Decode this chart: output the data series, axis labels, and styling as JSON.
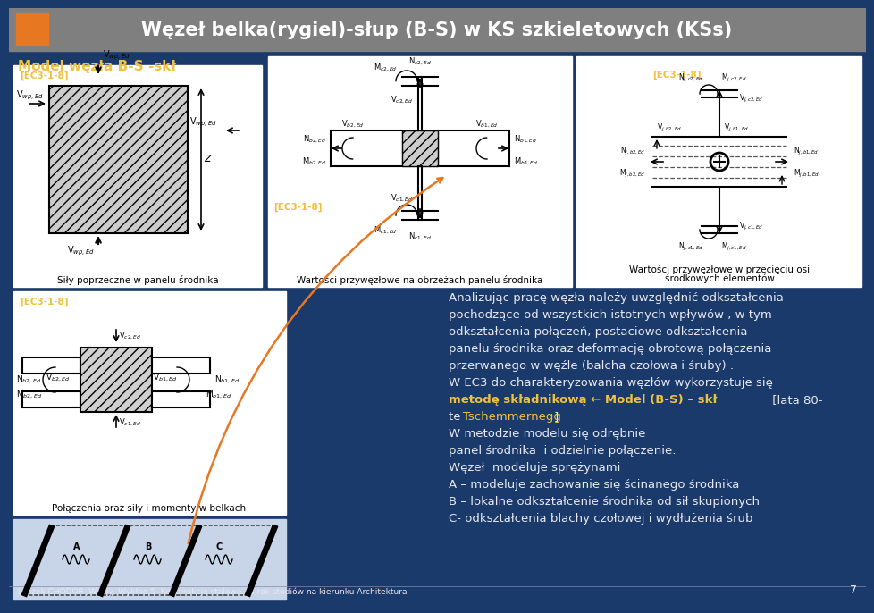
{
  "title": "Węzeł belka(rygiel)-słup (B-S) w KS szkieletowych (KSs)",
  "title_color": "#ffffff",
  "title_bg_color": "#7f7f7f",
  "bg_color": "#1a3a6b",
  "orange_rect_color": "#e87722",
  "subtitle": "Model węzła B-S -skł",
  "subtitle_color": "#f0c040",
  "ec3_label": "[EC3-1-8]",
  "ec3_color": "#f0c040",
  "bottom_text": "Leszek CHODOR ,Węzły, Wykład 5  Konstrukcje stalowe , 3 rok studiów na kierunku Architektura",
  "page_num": "7",
  "text_block1_line1": "Analizując pracę węzła należy uwzględnić odkształcenia",
  "text_block1_line2": "pochodzące od wszystkich istotnych wpływów , w tym",
  "text_block1_line3": "odkształcenia połączeń, postaciowe odkształcenia",
  "text_block1_line4": "panelu środnika oraz deformację obrotową połączenia",
  "text_block1_line5": "przerwanego w węźle (balcha czołowa i śruby) .",
  "text_block2_line1": "W EC3 do charakteryzowania węzłów wykorzystuje się",
  "text_block2_bold": "metodę składnikową ← Model (B-S) – skł",
  "text_block2_suffix": " [lata 80-",
  "text_block2_tschemmernegg": "Tschemmernegg",
  "text_block2_bracket": "]",
  "text_block2_line4": "W metodzie modelu się odrębnie",
  "text_block2_line5": "panel środnika  i odzielnie połączenie.",
  "text_block2_line6": "Węzeł  modeluje sprężynami",
  "text_block2_line7": "A – modeluje zachowanie się ścinanego środnika",
  "text_block2_line8": "B – lokalne odkształcenie środnika od sił skupionych",
  "text_block2_line9": "C- odkształcenia blachy czołowej i wydłużenia śrub",
  "box1_label": "Siły poprzeczne w panelu środnika",
  "box2_label": "Połączenia oraz siły i momenty w belkach",
  "box3_label_line1": "Wartości przywęzłowe na obrzeżach panelu środnika",
  "box4_label_line1": "Wartości przywęzłowe w przecięciu osi",
  "box4_label_line2": "środkowych elementów",
  "white_color": "#ffffff",
  "yellow_color": "#f0c040",
  "text_white": "#e8e8f0"
}
